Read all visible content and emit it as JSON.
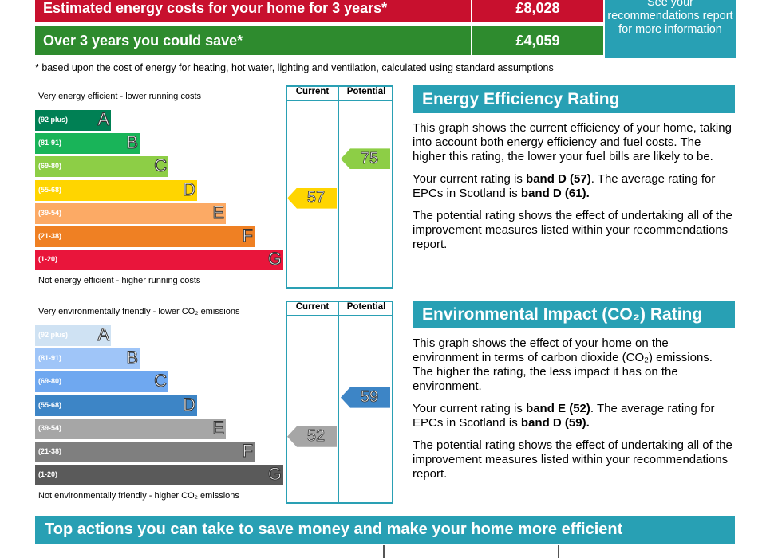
{
  "costs": {
    "estimated_label": "Estimated energy costs for your home for 3 years*",
    "estimated_value": "£8,028",
    "save_label": "Over 3 years you could save*",
    "save_value": "£4,059",
    "recommendations_text": "See your recommendations report for more information",
    "footnote": "* based upon the cost of energy for heating, hot water, lighting and ventilation, calculated using standard assumptions"
  },
  "colors": {
    "accent": "#28a0b4",
    "cost_red": "#c8102e",
    "cost_green": "#2e8b2e"
  },
  "energy_graph": {
    "top_note": "Very energy efficient - lower running costs",
    "bottom_note": "Not energy efficient - higher running costs",
    "current_header": "Current",
    "potential_header": "Potential",
    "bands": [
      {
        "range": "(92 plus)",
        "letter": "A",
        "color": "#008054"
      },
      {
        "range": "(81-91)",
        "letter": "B",
        "color": "#19b459"
      },
      {
        "range": "(69-80)",
        "letter": "C",
        "color": "#8dce46"
      },
      {
        "range": "(55-68)",
        "letter": "D",
        "color": "#ffd500"
      },
      {
        "range": "(39-54)",
        "letter": "E",
        "color": "#fcaa65"
      },
      {
        "range": "(21-38)",
        "letter": "F",
        "color": "#ef8023"
      },
      {
        "range": "(1-20)",
        "letter": "G",
        "color": "#e9153b"
      }
    ],
    "current": {
      "value": "57",
      "band": "D",
      "color": "#ffd500"
    },
    "potential": {
      "value": "75",
      "band": "C",
      "color": "#8dce46"
    }
  },
  "co2_graph": {
    "top_note": "Very environmentally friendly - lower CO₂ emissions",
    "bottom_note": "Not environmentally friendly - higher CO₂ emissions",
    "current_header": "Current",
    "potential_header": "Potential",
    "bands": [
      {
        "range": "(92 plus)",
        "letter": "A",
        "color": "#cfe2f3"
      },
      {
        "range": "(81-91)",
        "letter": "B",
        "color": "#9fc5f8"
      },
      {
        "range": "(69-80)",
        "letter": "C",
        "color": "#6fa8f0"
      },
      {
        "range": "(55-68)",
        "letter": "D",
        "color": "#3d85c6"
      },
      {
        "range": "(39-54)",
        "letter": "E",
        "color": "#a6a6a6"
      },
      {
        "range": "(21-38)",
        "letter": "F",
        "color": "#7f7f7f"
      },
      {
        "range": "(1-20)",
        "letter": "G",
        "color": "#5a5a5a"
      }
    ],
    "current": {
      "value": "52",
      "band": "E",
      "color": "#a6a6a6"
    },
    "potential": {
      "value": "59",
      "band": "D",
      "color": "#3d85c6"
    }
  },
  "energy_panel": {
    "title": "Energy Efficiency Rating",
    "p1": "This graph shows the current efficiency of your home, taking into account both energy efficiency and fuel costs. The higher this rating, the lower your fuel bills are likely to be.",
    "p2_a": "Your current rating is ",
    "p2_b": "band D (57)",
    "p2_c": ". The average rating for EPCs in Scotland is ",
    "p2_d": "band D (61).",
    "p3": "The potential rating shows the effect of undertaking all of the improvement measures listed within your recommendations report."
  },
  "co2_panel": {
    "title": "Environmental Impact (CO₂) Rating",
    "p1": "This graph shows the effect of your home on the environment in terms of carbon dioxide (CO₂) emissions. The higher the rating, the less impact it has on the environment.",
    "p2_a": "Your current rating is ",
    "p2_b": "band E (52)",
    "p2_c": ". The average rating for EPCs in Scotland is ",
    "p2_d": "band D (59).",
    "p3": "The potential rating shows the effect of undertaking all of the improvement measures listed within your recommendations report."
  },
  "actions_title": "Top actions you can take to save money and make your home more efficient"
}
